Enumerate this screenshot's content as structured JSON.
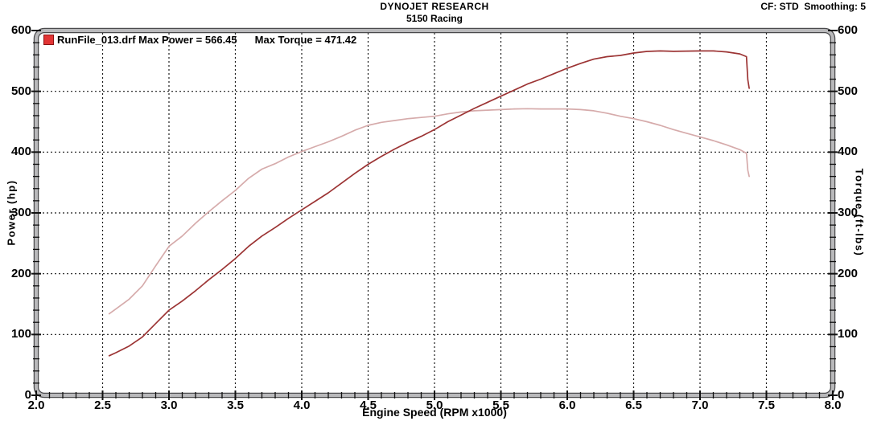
{
  "header": {
    "title": "DYNOJET RESEARCH",
    "subtitle": "5150 Racing",
    "corner_info": "CF: STD  Smoothing: 5"
  },
  "legend": {
    "file_name": "RunFile_013.drf",
    "max_power_text": "Max Power = 566.45",
    "max_torque_text": "Max Torque = 471.42",
    "swatch_color": "#e23434"
  },
  "colors": {
    "power_curve": "#9c3434",
    "torque_curve": "#d6abab",
    "grid": "#1a1a1a",
    "frame_dark": "#4a4a4c",
    "frame_light": "#b9b9bb",
    "text": "#000000"
  },
  "chart_data": {
    "type": "line",
    "title": "DYNOJET RESEARCH",
    "subtitle": "5150 Racing",
    "xlabel": "Engine Speed (RPM x1000)",
    "ylabel_left": "Power (hp)",
    "ylabel_right": "Torque (ft-lbs)",
    "xlim": [
      2.0,
      8.0
    ],
    "ylim": [
      0,
      600
    ],
    "x_major_ticks": [
      {
        "v": 2.0,
        "label": "2.0"
      },
      {
        "v": 2.5,
        "label": "2.5"
      },
      {
        "v": 3.0,
        "label": "3.0"
      },
      {
        "v": 3.5,
        "label": "3.5"
      },
      {
        "v": 4.0,
        "label": "4.0"
      },
      {
        "v": 4.5,
        "label": "4.5"
      },
      {
        "v": 5.0,
        "label": "5.0"
      },
      {
        "v": 5.5,
        "label": "5.5"
      },
      {
        "v": 6.0,
        "label": "6.0"
      },
      {
        "v": 6.5,
        "label": "6.5"
      },
      {
        "v": 7.0,
        "label": "7.0"
      },
      {
        "v": 7.5,
        "label": "7.5"
      },
      {
        "v": 8.0,
        "label": "8.0"
      }
    ],
    "y_major_ticks": [
      {
        "v": 0,
        "label": "0"
      },
      {
        "v": 100,
        "label": "100"
      },
      {
        "v": 200,
        "label": "200"
      },
      {
        "v": 300,
        "label": "300"
      },
      {
        "v": 400,
        "label": "400"
      },
      {
        "v": 500,
        "label": "500"
      },
      {
        "v": 600,
        "label": "600"
      }
    ],
    "x_minor_step": 0.1,
    "y_minor_step": 20,
    "grid": "dotted black at major ticks, both axes labeled left and right",
    "legend_position": "top-left inside plot",
    "max_power": 566.45,
    "max_torque": 471.42,
    "x": [
      2.55,
      2.6,
      2.7,
      2.8,
      2.9,
      3.0,
      3.1,
      3.2,
      3.3,
      3.4,
      3.5,
      3.6,
      3.7,
      3.8,
      3.9,
      4.0,
      4.1,
      4.2,
      4.3,
      4.4,
      4.5,
      4.6,
      4.7,
      4.8,
      4.9,
      5.0,
      5.1,
      5.2,
      5.3,
      5.4,
      5.5,
      5.6,
      5.7,
      5.8,
      5.9,
      6.0,
      6.1,
      6.2,
      6.3,
      6.4,
      6.5,
      6.6,
      6.7,
      6.8,
      6.9,
      7.0,
      7.1,
      7.2,
      7.3,
      7.35,
      7.36,
      7.37
    ],
    "series": [
      {
        "name": "Power (hp)",
        "color": "#9c3434",
        "values": [
          65,
          70,
          81,
          96,
          118,
          140,
          155,
          172,
          190,
          207,
          225,
          245,
          262,
          276,
          291,
          305,
          319,
          333,
          349,
          365,
          380,
          393,
          405,
          416,
          426,
          437,
          450,
          461,
          472,
          482,
          492,
          502,
          512,
          520,
          529,
          538,
          546,
          553,
          557,
          559,
          563,
          565.6,
          566.4,
          565.8,
          566.2,
          566.4,
          566.4,
          564.8,
          561.5,
          557,
          519,
          505
        ]
      },
      {
        "name": "Torque (ft-lbs)",
        "color": "#d6abab",
        "values": [
          134,
          142,
          158,
          180,
          213,
          245,
          262,
          283,
          302,
          320,
          337,
          357,
          372,
          381,
          392,
          401,
          409,
          417,
          426,
          436,
          444,
          449,
          452,
          455,
          457,
          459,
          463,
          466,
          468,
          469,
          470,
          471,
          471.4,
          471,
          471,
          471,
          470,
          468,
          464,
          459,
          455,
          450,
          444,
          437,
          431,
          425,
          419,
          412,
          404,
          398,
          370,
          360
        ]
      }
    ]
  }
}
